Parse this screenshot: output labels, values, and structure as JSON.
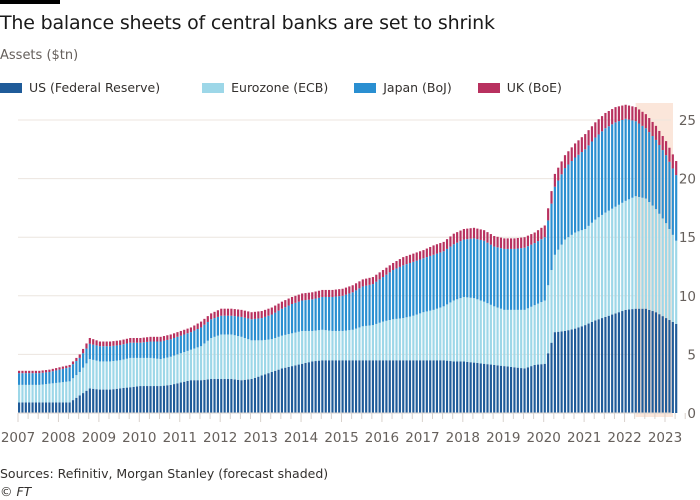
{
  "header": {
    "title": "The balance sheets of central banks are set to shrink",
    "subtitle": "Assets ($tn)"
  },
  "footer": {
    "source": "Sources: Refinitiv, Morgan Stanley (forecast shaded)",
    "copyright": "© FT"
  },
  "chart_data": {
    "type": "bar",
    "stacked": true,
    "title": "The balance sheets of central banks are set to shrink",
    "ylabel": "Assets ($tn)",
    "xlabel": "",
    "ylim": [
      0,
      25
    ],
    "yticks": [
      0,
      5,
      10,
      15,
      20,
      25
    ],
    "xticks": [
      "2007",
      "2008",
      "2009",
      "2010",
      "2011",
      "2012",
      "2013",
      "2014",
      "2015",
      "2016",
      "2017",
      "2018",
      "2019",
      "2020",
      "2021",
      "2022",
      "2023"
    ],
    "grid": true,
    "legend_position": "top-left",
    "forecast_shaded_from": "2022 Q2",
    "colors": {
      "us": "#1f5b99",
      "ecb": "#9dd7e8",
      "boj": "#2a8fd1",
      "boe": "#b8315f",
      "forecast": "#fbe6da"
    },
    "x": [
      "2007 Q1",
      "2007 Q2",
      "2007 Q3",
      "2007 Q4",
      "2008 Q1",
      "2008 Q2",
      "2008 Q3",
      "2008 Q4",
      "2009 Q1",
      "2009 Q2",
      "2009 Q3",
      "2009 Q4",
      "2010 Q1",
      "2010 Q2",
      "2010 Q3",
      "2010 Q4",
      "2011 Q1",
      "2011 Q2",
      "2011 Q3",
      "2011 Q4",
      "2012 Q1",
      "2012 Q2",
      "2012 Q3",
      "2012 Q4",
      "2013 Q1",
      "2013 Q2",
      "2013 Q3",
      "2013 Q4",
      "2014 Q1",
      "2014 Q2",
      "2014 Q3",
      "2014 Q4",
      "2015 Q1",
      "2015 Q2",
      "2015 Q3",
      "2015 Q4",
      "2016 Q1",
      "2016 Q2",
      "2016 Q3",
      "2016 Q4",
      "2017 Q1",
      "2017 Q2",
      "2017 Q3",
      "2017 Q4",
      "2018 Q1",
      "2018 Q2",
      "2018 Q3",
      "2018 Q4",
      "2019 Q1",
      "2019 Q2",
      "2019 Q3",
      "2019 Q4",
      "2020 Q1",
      "2020 Q2",
      "2020 Q3",
      "2020 Q4",
      "2021 Q1",
      "2021 Q2",
      "2021 Q3",
      "2021 Q4",
      "2022 Q1",
      "2022 Q2",
      "2022 Q3",
      "2022 Q4",
      "2023 Q1",
      "2023 Q2"
    ],
    "series": [
      {
        "name": "US (Federal Reserve)",
        "key": "us",
        "values": [
          0.9,
          0.9,
          0.9,
          0.9,
          0.9,
          0.9,
          1.5,
          2.1,
          2.0,
          2.0,
          2.1,
          2.2,
          2.3,
          2.3,
          2.3,
          2.4,
          2.6,
          2.8,
          2.8,
          2.9,
          2.9,
          2.9,
          2.8,
          2.9,
          3.2,
          3.5,
          3.8,
          4.0,
          4.2,
          4.4,
          4.5,
          4.5,
          4.5,
          4.5,
          4.5,
          4.5,
          4.5,
          4.5,
          4.5,
          4.5,
          4.5,
          4.5,
          4.5,
          4.4,
          4.4,
          4.3,
          4.2,
          4.1,
          4.0,
          3.9,
          3.8,
          4.1,
          4.2,
          6.9,
          7.0,
          7.2,
          7.5,
          7.9,
          8.2,
          8.5,
          8.8,
          8.9,
          8.9,
          8.6,
          8.1,
          7.6
        ]
      },
      {
        "name": "Eurozone (ECB)",
        "key": "ecb",
        "values": [
          1.5,
          1.5,
          1.5,
          1.6,
          1.7,
          1.8,
          2.0,
          2.5,
          2.4,
          2.4,
          2.4,
          2.5,
          2.4,
          2.4,
          2.3,
          2.4,
          2.5,
          2.6,
          2.9,
          3.5,
          3.8,
          3.8,
          3.7,
          3.3,
          3.0,
          2.8,
          2.8,
          2.8,
          2.8,
          2.6,
          2.6,
          2.5,
          2.5,
          2.6,
          2.9,
          3.0,
          3.3,
          3.5,
          3.6,
          3.8,
          4.1,
          4.3,
          4.6,
          5.2,
          5.5,
          5.5,
          5.3,
          5.0,
          4.8,
          4.9,
          5.0,
          5.1,
          5.4,
          6.6,
          7.8,
          8.2,
          8.2,
          8.6,
          8.9,
          9.1,
          9.3,
          9.6,
          9.4,
          8.8,
          8.1,
          7.1
        ]
      },
      {
        "name": "Japan (BoJ)",
        "key": "boj",
        "values": [
          1.0,
          1.0,
          1.0,
          1.0,
          1.1,
          1.2,
          1.2,
          1.3,
          1.3,
          1.3,
          1.3,
          1.3,
          1.3,
          1.4,
          1.5,
          1.5,
          1.5,
          1.5,
          1.6,
          1.6,
          1.6,
          1.6,
          1.7,
          1.8,
          1.9,
          2.1,
          2.3,
          2.5,
          2.6,
          2.7,
          2.8,
          2.9,
          3.0,
          3.2,
          3.4,
          3.5,
          3.8,
          4.2,
          4.5,
          4.6,
          4.6,
          4.7,
          4.7,
          4.8,
          4.9,
          5.1,
          5.2,
          5.1,
          5.2,
          5.2,
          5.3,
          5.3,
          5.4,
          5.8,
          6.1,
          6.4,
          6.8,
          7.0,
          7.2,
          7.2,
          7.0,
          6.4,
          6.0,
          5.9,
          5.8,
          5.6
        ]
      },
      {
        "name": "UK (BoE)",
        "key": "boe",
        "values": [
          0.2,
          0.2,
          0.2,
          0.2,
          0.2,
          0.2,
          0.3,
          0.5,
          0.4,
          0.4,
          0.4,
          0.4,
          0.4,
          0.4,
          0.4,
          0.4,
          0.4,
          0.4,
          0.5,
          0.5,
          0.6,
          0.6,
          0.6,
          0.6,
          0.6,
          0.6,
          0.6,
          0.6,
          0.6,
          0.6,
          0.6,
          0.6,
          0.6,
          0.6,
          0.6,
          0.6,
          0.6,
          0.6,
          0.7,
          0.7,
          0.7,
          0.8,
          0.8,
          0.9,
          0.9,
          0.9,
          0.9,
          0.9,
          0.9,
          0.9,
          0.9,
          0.9,
          1.0,
          1.1,
          1.1,
          1.2,
          1.3,
          1.3,
          1.3,
          1.3,
          1.2,
          1.2,
          1.2,
          1.2,
          1.2,
          1.2
        ]
      }
    ]
  }
}
